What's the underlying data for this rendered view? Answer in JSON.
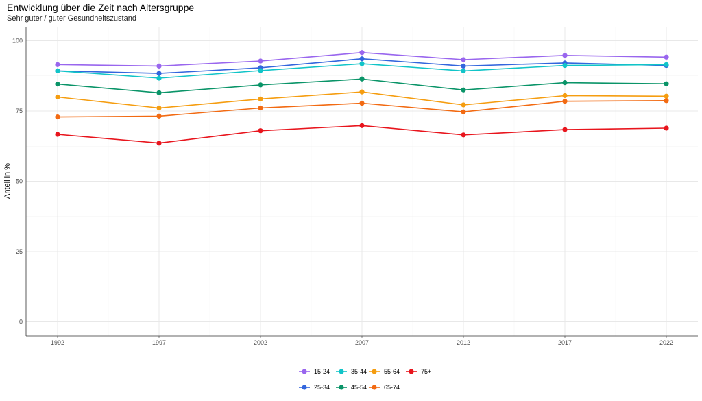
{
  "chart_data": {
    "type": "line",
    "title": "Entwicklung über die Zeit nach Altersgruppe",
    "subtitle": "Sehr guter / guter Gesundheitszustand",
    "ylabel": "Anteil in %",
    "xlabel": "",
    "ylim": [
      -5,
      105
    ],
    "yticks": [
      0,
      25,
      50,
      75,
      100
    ],
    "x": [
      1992,
      1997,
      2002,
      2007,
      2012,
      2017,
      2022
    ],
    "grid": true,
    "legend_position": "bottom",
    "series": [
      {
        "name": "15-24",
        "color": "#9966ee",
        "values": [
          91.5,
          91.0,
          92.8,
          95.8,
          93.3,
          94.8,
          94.2
        ]
      },
      {
        "name": "25-34",
        "color": "#3366dd",
        "values": [
          89.3,
          88.4,
          90.4,
          93.6,
          91.0,
          92.1,
          91.2
        ]
      },
      {
        "name": "35-44",
        "color": "#11c4c8",
        "values": [
          89.3,
          86.7,
          89.4,
          91.8,
          89.3,
          91.2,
          91.5
        ]
      },
      {
        "name": "45-54",
        "color": "#0a9468",
        "values": [
          84.6,
          81.5,
          84.3,
          86.4,
          82.5,
          85.1,
          84.7
        ]
      },
      {
        "name": "55-64",
        "color": "#f59d10",
        "values": [
          80.0,
          76.1,
          79.3,
          81.8,
          77.2,
          80.5,
          80.3
        ]
      },
      {
        "name": "65-74",
        "color": "#f26a12",
        "values": [
          72.9,
          73.2,
          76.1,
          77.8,
          74.7,
          78.5,
          78.7
        ]
      },
      {
        "name": "75+",
        "color": "#e8151d",
        "values": [
          66.7,
          63.6,
          68.0,
          69.8,
          66.5,
          68.4,
          68.9
        ]
      }
    ]
  }
}
